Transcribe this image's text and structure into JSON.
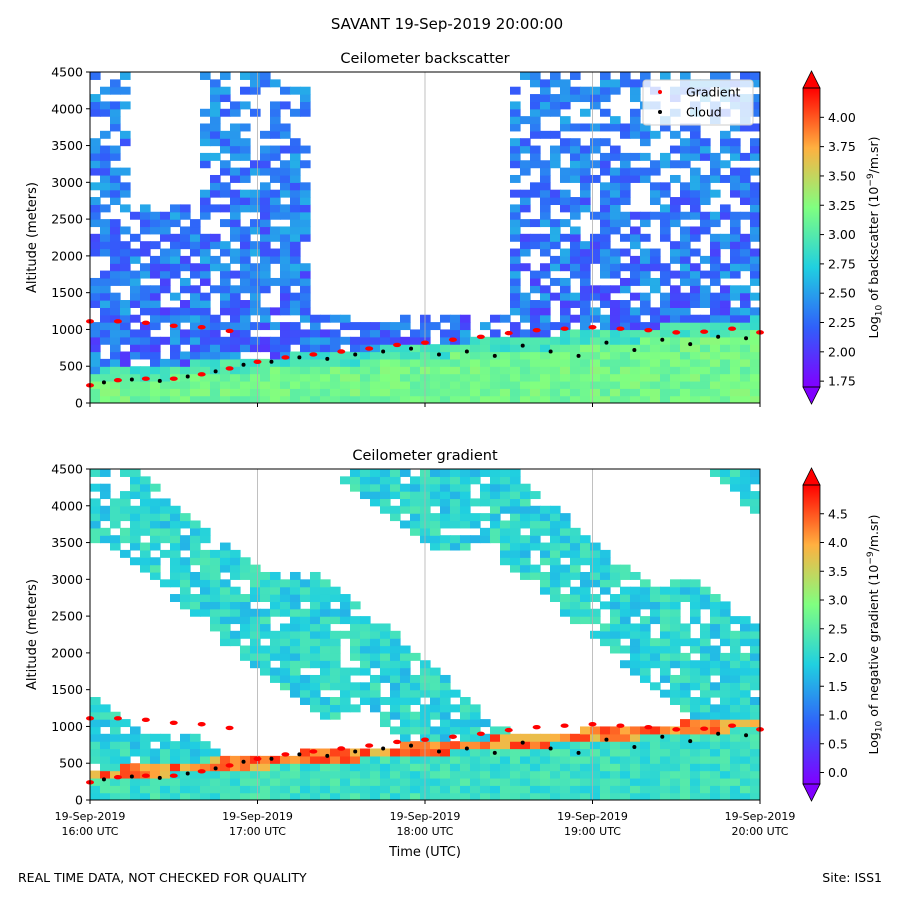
{
  "figure": {
    "title": "SAVANT 19-Sep-2019 20:00:00",
    "footer_left": "REAL TIME DATA, NOT CHECKED FOR QUALITY",
    "footer_right": "Site: ISS1"
  },
  "chart_data": [
    {
      "type": "heatmap",
      "title": "Ceilometer backscatter",
      "ylabel": "Altitude (meters)",
      "xlabel": "",
      "ylim": [
        0,
        4500
      ],
      "yticks": [
        0,
        500,
        1000,
        1500,
        2000,
        2500,
        3000,
        3500,
        4000,
        4500
      ],
      "xlim": [
        "2019-09-19 16:00",
        "2019-09-19 20:00"
      ],
      "xticks": [
        "2019-09-19 16:00",
        "2019-09-19 17:00",
        "2019-09-19 18:00",
        "2019-09-19 19:00",
        "2019-09-19 20:00"
      ],
      "grid": "vertical",
      "colorbar": {
        "label": "Log10 of backscatter (10^-9/m.sr)",
        "label_parts": [
          "Log",
          "10",
          " of backscatter (10",
          "−9",
          "/m.sr)"
        ],
        "ticks": [
          "1.75",
          "2.00",
          "2.25",
          "2.50",
          "2.75",
          "3.00",
          "3.25",
          "3.50",
          "3.75",
          "4.00"
        ],
        "range": [
          1.7,
          4.25
        ],
        "colormap": "rainbow",
        "extend": "both"
      },
      "legend": {
        "placement": "top-right",
        "entries": [
          {
            "label": "Gradient",
            "color": "#ff0000"
          },
          {
            "label": "Cloud",
            "color": "#000000"
          }
        ]
      },
      "overlays": {
        "gradient_points": [
          [
            "16:00",
            240
          ],
          [
            "16:10",
            310
          ],
          [
            "16:20",
            330
          ],
          [
            "16:30",
            330
          ],
          [
            "16:40",
            390
          ],
          [
            "16:50",
            470
          ],
          [
            "17:00",
            560
          ],
          [
            "17:10",
            620
          ],
          [
            "17:20",
            660
          ],
          [
            "17:30",
            700
          ],
          [
            "17:40",
            740
          ],
          [
            "17:50",
            790
          ],
          [
            "18:00",
            820
          ],
          [
            "18:10",
            860
          ],
          [
            "18:20",
            900
          ],
          [
            "18:30",
            950
          ],
          [
            "18:40",
            990
          ],
          [
            "18:50",
            1010
          ],
          [
            "19:00",
            1030
          ],
          [
            "19:10",
            1010
          ],
          [
            "19:20",
            990
          ],
          [
            "19:30",
            960
          ],
          [
            "19:40",
            970
          ],
          [
            "19:50",
            1010
          ],
          [
            "20:00",
            960
          ]
        ],
        "gradient_upper_layer": [
          [
            "16:00",
            1110
          ],
          [
            "16:10",
            1110
          ],
          [
            "16:20",
            1090
          ],
          [
            "16:30",
            1050
          ],
          [
            "16:40",
            1030
          ],
          [
            "16:50",
            980
          ]
        ],
        "cloud_points": [
          [
            "16:05",
            280
          ],
          [
            "16:15",
            320
          ],
          [
            "16:25",
            300
          ],
          [
            "16:35",
            360
          ],
          [
            "16:45",
            430
          ],
          [
            "16:55",
            520
          ],
          [
            "17:05",
            560
          ],
          [
            "17:15",
            620
          ],
          [
            "17:25",
            600
          ],
          [
            "17:35",
            660
          ],
          [
            "17:45",
            700
          ],
          [
            "17:55",
            740
          ],
          [
            "18:05",
            660
          ],
          [
            "18:15",
            700
          ],
          [
            "18:25",
            640
          ],
          [
            "18:35",
            780
          ],
          [
            "18:45",
            700
          ],
          [
            "18:55",
            640
          ],
          [
            "19:05",
            820
          ],
          [
            "19:15",
            720
          ],
          [
            "19:25",
            860
          ],
          [
            "19:35",
            800
          ],
          [
            "19:45",
            900
          ],
          [
            "19:55",
            880
          ]
        ]
      }
    },
    {
      "type": "heatmap",
      "title": "Ceilometer gradient",
      "ylabel": "Altitude (meters)",
      "xlabel": "Time (UTC)",
      "ylim": [
        0,
        4500
      ],
      "yticks": [
        0,
        500,
        1000,
        1500,
        2000,
        2500,
        3000,
        3500,
        4000,
        4500
      ],
      "xlim": [
        "2019-09-19 16:00",
        "2019-09-19 20:00"
      ],
      "xticks": [
        "2019-09-19 16:00",
        "2019-09-19 17:00",
        "2019-09-19 18:00",
        "2019-09-19 19:00",
        "2019-09-19 20:00"
      ],
      "xtick_labels": [
        [
          "19-Sep-2019",
          "16:00 UTC"
        ],
        [
          "19-Sep-2019",
          "17:00 UTC"
        ],
        [
          "19-Sep-2019",
          "18:00 UTC"
        ],
        [
          "19-Sep-2019",
          "19:00 UTC"
        ],
        [
          "19-Sep-2019",
          "20:00 UTC"
        ]
      ],
      "grid": "vertical",
      "colorbar": {
        "label": "Log10 of negative gradient (10^-9/m.sr)",
        "label_parts": [
          "Log",
          "10",
          " of negative gradient (10",
          "−9",
          "/m.sr)"
        ],
        "ticks": [
          "0.0",
          "0.5",
          "1.0",
          "1.5",
          "2.0",
          "2.5",
          "3.0",
          "3.5",
          "4.0",
          "4.5"
        ],
        "range": [
          -0.2,
          5.0
        ],
        "colormap": "rainbow",
        "extend": "both"
      },
      "overlays": {
        "gradient_points": [
          [
            "16:00",
            240
          ],
          [
            "16:10",
            310
          ],
          [
            "16:20",
            330
          ],
          [
            "16:30",
            330
          ],
          [
            "16:40",
            390
          ],
          [
            "16:50",
            470
          ],
          [
            "17:00",
            560
          ],
          [
            "17:10",
            620
          ],
          [
            "17:20",
            660
          ],
          [
            "17:30",
            700
          ],
          [
            "17:40",
            740
          ],
          [
            "17:50",
            790
          ],
          [
            "18:00",
            820
          ],
          [
            "18:10",
            860
          ],
          [
            "18:20",
            900
          ],
          [
            "18:30",
            950
          ],
          [
            "18:40",
            990
          ],
          [
            "18:50",
            1010
          ],
          [
            "19:00",
            1030
          ],
          [
            "19:10",
            1010
          ],
          [
            "19:20",
            990
          ],
          [
            "19:30",
            960
          ],
          [
            "19:40",
            970
          ],
          [
            "19:50",
            1010
          ],
          [
            "20:00",
            960
          ]
        ],
        "gradient_upper_layer": [
          [
            "16:00",
            1110
          ],
          [
            "16:10",
            1110
          ],
          [
            "16:20",
            1090
          ],
          [
            "16:30",
            1050
          ],
          [
            "16:40",
            1030
          ],
          [
            "16:50",
            980
          ]
        ],
        "cloud_points": [
          [
            "16:05",
            280
          ],
          [
            "16:15",
            320
          ],
          [
            "16:25",
            300
          ],
          [
            "16:35",
            360
          ],
          [
            "16:45",
            430
          ],
          [
            "16:55",
            520
          ],
          [
            "17:05",
            560
          ],
          [
            "17:15",
            620
          ],
          [
            "17:25",
            600
          ],
          [
            "17:35",
            660
          ],
          [
            "17:45",
            700
          ],
          [
            "17:55",
            740
          ],
          [
            "18:05",
            660
          ],
          [
            "18:15",
            700
          ],
          [
            "18:25",
            640
          ],
          [
            "18:35",
            780
          ],
          [
            "18:45",
            700
          ],
          [
            "18:55",
            640
          ],
          [
            "19:05",
            820
          ],
          [
            "19:15",
            720
          ],
          [
            "19:25",
            860
          ],
          [
            "19:35",
            800
          ],
          [
            "19:45",
            900
          ],
          [
            "19:55",
            880
          ]
        ]
      }
    }
  ]
}
